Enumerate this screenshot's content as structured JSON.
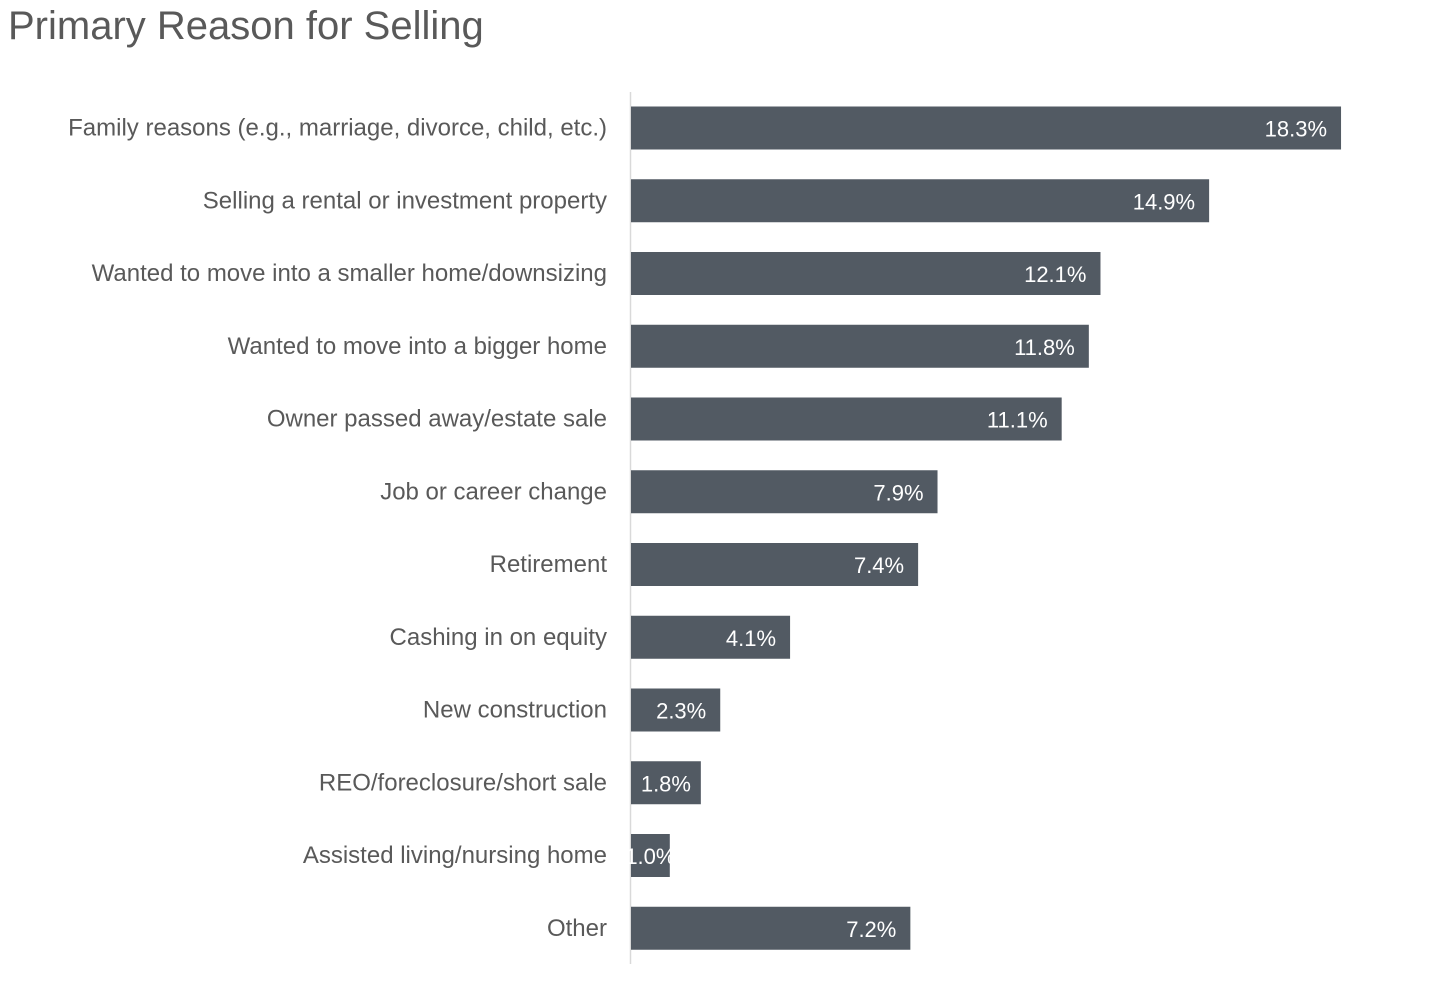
{
  "chart_data": {
    "type": "bar",
    "orientation": "horizontal",
    "title": "Primary Reason for Selling",
    "xlabel": "",
    "ylabel": "",
    "xlim": [
      0,
      20
    ],
    "grid": false,
    "legend": "none",
    "value_suffix": "%",
    "bar_color": "#525a63",
    "categories": [
      "Family reasons (e.g., marriage, divorce, child, etc.)",
      "Selling a rental or investment property",
      "Wanted to move into a smaller home/downsizing",
      "Wanted to move into a bigger home",
      "Owner passed away/estate sale",
      "Job or career change",
      "Retirement",
      "Cashing in on equity",
      "New construction",
      "REO/foreclosure/short sale",
      "Assisted living/nursing home",
      "Other"
    ],
    "values": [
      18.3,
      14.9,
      12.1,
      11.8,
      11.1,
      7.9,
      7.4,
      4.1,
      2.3,
      1.8,
      1.0,
      7.2
    ]
  }
}
